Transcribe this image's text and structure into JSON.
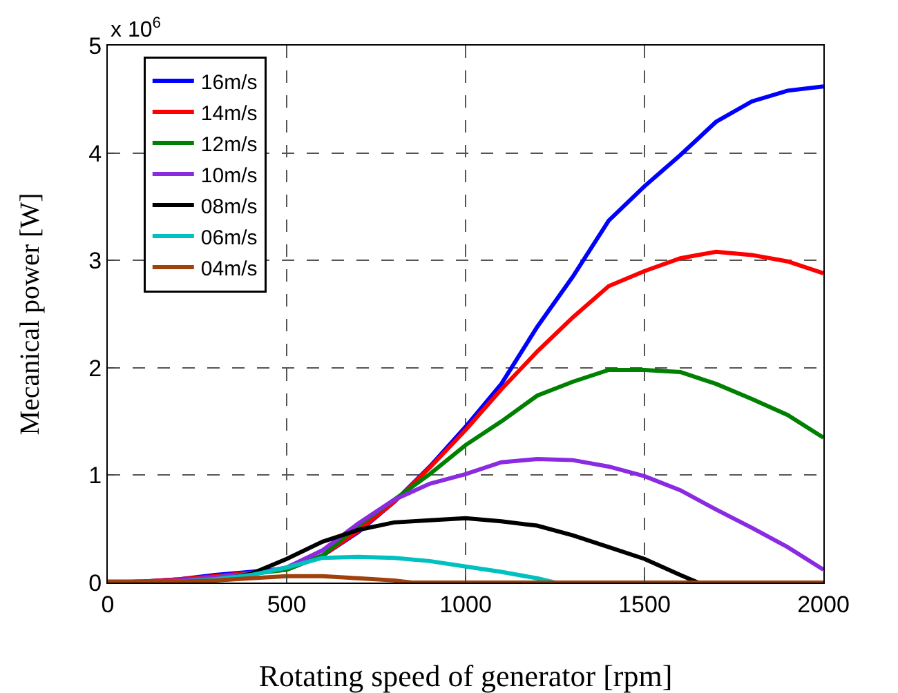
{
  "chart_data": {
    "type": "line",
    "xlabel": "Rotating speed of generator [rpm]",
    "ylabel": "Mecanical power [W]",
    "annotations": [
      "x 10$^{6}$"
    ],
    "x": [
      0,
      100,
      200,
      300,
      400,
      500,
      600,
      700,
      800,
      900,
      1000,
      1100,
      1200,
      1300,
      1400,
      1500,
      1600,
      1700,
      1800,
      1900,
      2000
    ],
    "xlim": [
      0,
      2000
    ],
    "xticks": [
      0,
      500,
      1000,
      1500,
      2000
    ],
    "ylim": [
      0,
      5
    ],
    "yticks": [
      0,
      1,
      2,
      3,
      4,
      5
    ],
    "grid": true,
    "legend": "top left",
    "line_style": "solid",
    "marker": "none",
    "series": [
      {
        "name": "16m/s",
        "color": "#0000ff",
        "values": [
          0,
          0.01,
          0.03,
          0.07,
          0.1,
          0.13,
          0.25,
          0.47,
          0.75,
          1.08,
          1.45,
          1.85,
          2.38,
          2.85,
          3.37,
          3.69,
          3.98,
          4.29,
          4.48,
          4.58,
          4.62
        ]
      },
      {
        "name": "14m/s",
        "color": "#ff0000",
        "values": [
          0,
          0.01,
          0.03,
          0.06,
          0.09,
          0.12,
          0.25,
          0.48,
          0.75,
          1.07,
          1.42,
          1.8,
          2.15,
          2.47,
          2.76,
          2.9,
          3.02,
          3.08,
          3.05,
          2.99,
          2.88
        ]
      },
      {
        "name": "12m/s",
        "color": "#008000",
        "values": [
          null,
          null,
          null,
          0.05,
          0.08,
          0.12,
          0.25,
          0.53,
          0.77,
          1.01,
          1.28,
          1.5,
          1.74,
          1.87,
          1.98,
          1.98,
          1.96,
          1.85,
          1.71,
          1.56,
          1.35
        ]
      },
      {
        "name": "10m/s",
        "color": "#8a2be2",
        "values": [
          0,
          0.01,
          0.02,
          0.05,
          0.08,
          0.14,
          0.3,
          0.55,
          0.77,
          0.92,
          1.01,
          1.12,
          1.15,
          1.14,
          1.08,
          0.99,
          0.86,
          0.68,
          0.51,
          0.33,
          0.12
        ]
      },
      {
        "name": "08m/s",
        "color": "#000000",
        "x": [
          0,
          100,
          200,
          300,
          400,
          500,
          600,
          700,
          800,
          900,
          1000,
          1100,
          1200,
          1300,
          1400,
          1500,
          1600,
          1650,
          2000
        ],
        "values": [
          0,
          0,
          0,
          0.02,
          0.08,
          0.22,
          0.38,
          0.49,
          0.56,
          0.58,
          0.6,
          0.57,
          0.53,
          0.44,
          0.33,
          0.22,
          0.07,
          0,
          0
        ]
      },
      {
        "name": "06m/s",
        "color": "#00c0c0",
        "x": [
          0,
          100,
          200,
          300,
          400,
          500,
          600,
          700,
          800,
          900,
          1000,
          1100,
          1200,
          1250,
          2000
        ],
        "values": [
          0,
          0,
          0.01,
          0.03,
          0.07,
          0.14,
          0.23,
          0.24,
          0.23,
          0.2,
          0.15,
          0.1,
          0.04,
          0,
          0
        ]
      },
      {
        "name": "04m/s",
        "color": "#a0400a",
        "x": [
          0,
          100,
          200,
          300,
          400,
          500,
          600,
          700,
          800,
          850,
          2000
        ],
        "values": [
          0.01,
          0.01,
          0.01,
          0.02,
          0.04,
          0.06,
          0.06,
          0.04,
          0.02,
          0,
          0
        ]
      }
    ]
  }
}
